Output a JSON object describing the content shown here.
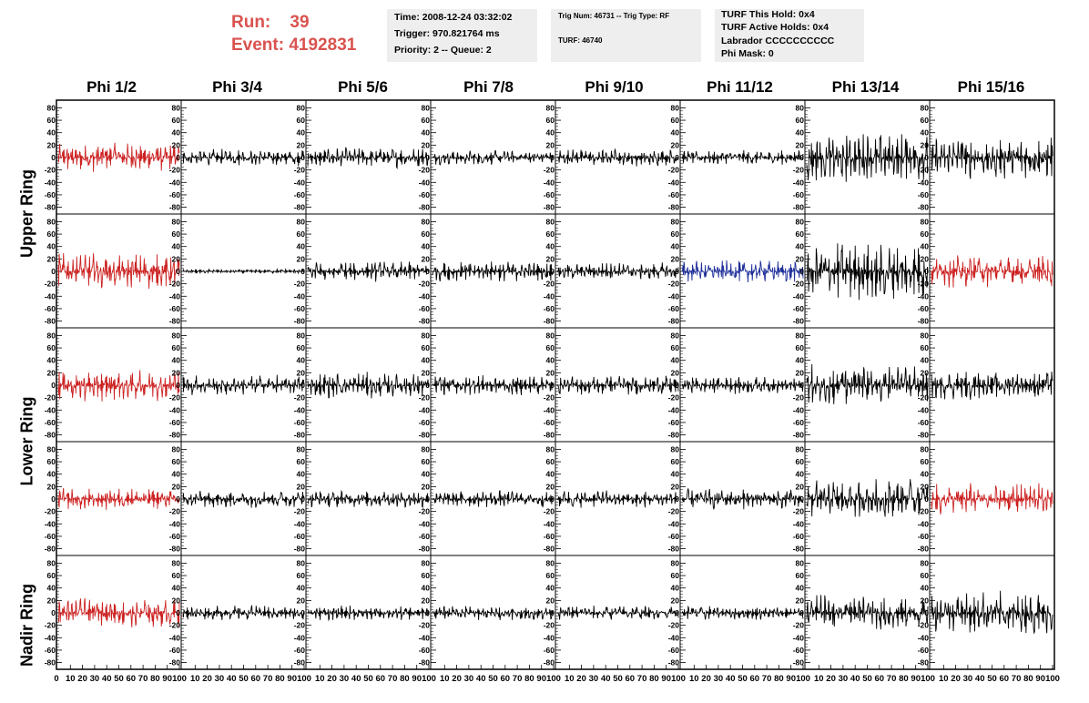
{
  "header": {
    "run_label": "Run:",
    "run_value": "39",
    "event_label": "Event:",
    "event_value": "4192831"
  },
  "info": {
    "time": "Time: 2008-12-24 03:32:02",
    "trigger": "Trigger: 970.821764 ms",
    "priority": "Priority: 2 -- Queue: 2",
    "trig_num": "Trig Num: 46731 -- Trig Type: RF",
    "turf": "TURF: 46740",
    "turf_hold": "TURF This Hold: 0x4",
    "turf_active": "TURF Active Holds: 0x4",
    "labrador": "Labrador CCCCCCCCCC",
    "phi_mask": "Phi Mask: 0"
  },
  "columns": [
    "Phi 1/2",
    "Phi 3/4",
    "Phi 5/6",
    "Phi 7/8",
    "Phi 9/10",
    "Phi 11/12",
    "Phi 13/14",
    "Phi 15/16"
  ],
  "rings": [
    "Upper Ring",
    "Lower Ring",
    "Nadir Ring"
  ],
  "colors": {
    "red": "#cc2222",
    "blue": "#1f2f9a",
    "black": "#000000",
    "accent": "#d9534f",
    "panel_bg": "#eeeeee"
  },
  "chart_data": {
    "type": "line",
    "x_ticks": [
      "10",
      "20",
      "30",
      "40",
      "50",
      "60",
      "70",
      "80",
      "90",
      "100"
    ],
    "x_first_tick": "0",
    "x_range": [
      0,
      100
    ],
    "y_ticks": [
      "80",
      "60",
      "40",
      "20",
      "0",
      "-20",
      "-40",
      "-60",
      "-80"
    ],
    "y_range": [
      -85,
      85
    ],
    "rows": 5,
    "cols": 8,
    "panel_colors": [
      [
        "red",
        "black",
        "black",
        "black",
        "black",
        "black",
        "black",
        "black"
      ],
      [
        "red",
        "black",
        "black",
        "black",
        "black",
        "blue",
        "black",
        "red"
      ],
      [
        "red",
        "black",
        "black",
        "black",
        "black",
        "black",
        "black",
        "black"
      ],
      [
        "red",
        "black",
        "black",
        "black",
        "black",
        "black",
        "black",
        "red"
      ],
      [
        "red",
        "black",
        "black",
        "black",
        "black",
        "black",
        "black",
        "black"
      ]
    ],
    "panel_amplitudes": [
      [
        20,
        12,
        14,
        10,
        12,
        10,
        35,
        30
      ],
      [
        25,
        3,
        14,
        14,
        12,
        15,
        40,
        22
      ],
      [
        22,
        14,
        18,
        14,
        14,
        12,
        30,
        20
      ],
      [
        15,
        12,
        12,
        12,
        12,
        14,
        28,
        22
      ],
      [
        20,
        10,
        10,
        10,
        10,
        10,
        25,
        30
      ]
    ]
  }
}
